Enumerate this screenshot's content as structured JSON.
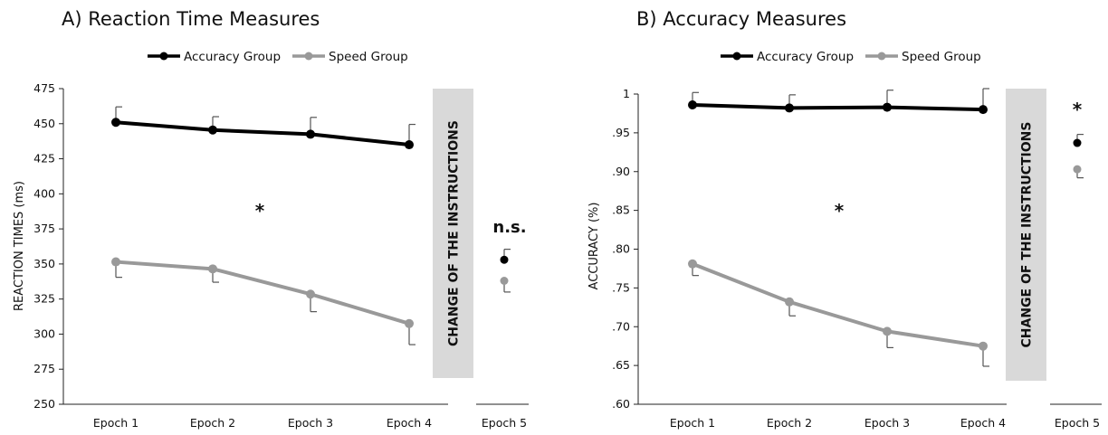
{
  "chart_data": [
    {
      "type": "line",
      "title": "A) Reaction Time Measures",
      "ylabel": "REACTION TIMES (ms)",
      "ylim": [
        250,
        475
      ],
      "yticks": [
        "250",
        "275",
        "300",
        "325",
        "350",
        "375",
        "400",
        "425",
        "450",
        "475"
      ],
      "categories": [
        "Epoch  1",
        "Epoch 2",
        "Epoch 3",
        "Epoch 4"
      ],
      "extra_category": "Epoch 5",
      "band_label": "CHANGE OF THE INSTRUCTIONS",
      "significance_main": "*",
      "significance_epoch5": "n.s.",
      "legend": [
        "Accuracy Group",
        "Speed Group"
      ],
      "series": [
        {
          "name": "Accuracy Group",
          "color": "#000000",
          "values": [
            451,
            445.5,
            442.5,
            435
          ],
          "err_plus": [
            11,
            9.5,
            12,
            14.5
          ],
          "epoch5": 353,
          "epoch5_err_plus": 7.5
        },
        {
          "name": "Speed Group",
          "color": "#999999",
          "values": [
            351.5,
            346.5,
            328.5,
            307.5
          ],
          "err_minus": [
            11,
            9.5,
            12.5,
            15
          ],
          "epoch5": 338,
          "epoch5_err_minus": 8
        }
      ]
    },
    {
      "type": "line",
      "title": "B) Accuracy Measures",
      "ylabel": "ACCURACY (%)",
      "ylim": [
        0.6,
        1.0
      ],
      "yticks": [
        ".60",
        ".65",
        ".70",
        ".75",
        ".80",
        ".85",
        ".90",
        ".95",
        "1"
      ],
      "categories": [
        "Epoch  1",
        "Epoch 2",
        "Epoch 3",
        "Epoch 4"
      ],
      "extra_category": "Epoch 5",
      "band_label": "CHANGE OF THE INSTRUCTIONS",
      "significance_main": "*",
      "significance_epoch5": "*",
      "legend": [
        "Accuracy Group",
        "Speed Group"
      ],
      "series": [
        {
          "name": "Accuracy Group",
          "color": "#000000",
          "values": [
            0.986,
            0.982,
            0.983,
            0.98
          ],
          "err_plus": [
            0.016,
            0.017,
            0.022,
            0.027
          ],
          "epoch5": 0.937,
          "epoch5_err_plus": 0.011
        },
        {
          "name": "Speed Group",
          "color": "#999999",
          "values": [
            0.781,
            0.732,
            0.694,
            0.675
          ],
          "err_minus": [
            0.015,
            0.018,
            0.021,
            0.026
          ],
          "epoch5": 0.903,
          "epoch5_err_minus": 0.011
        }
      ]
    }
  ]
}
